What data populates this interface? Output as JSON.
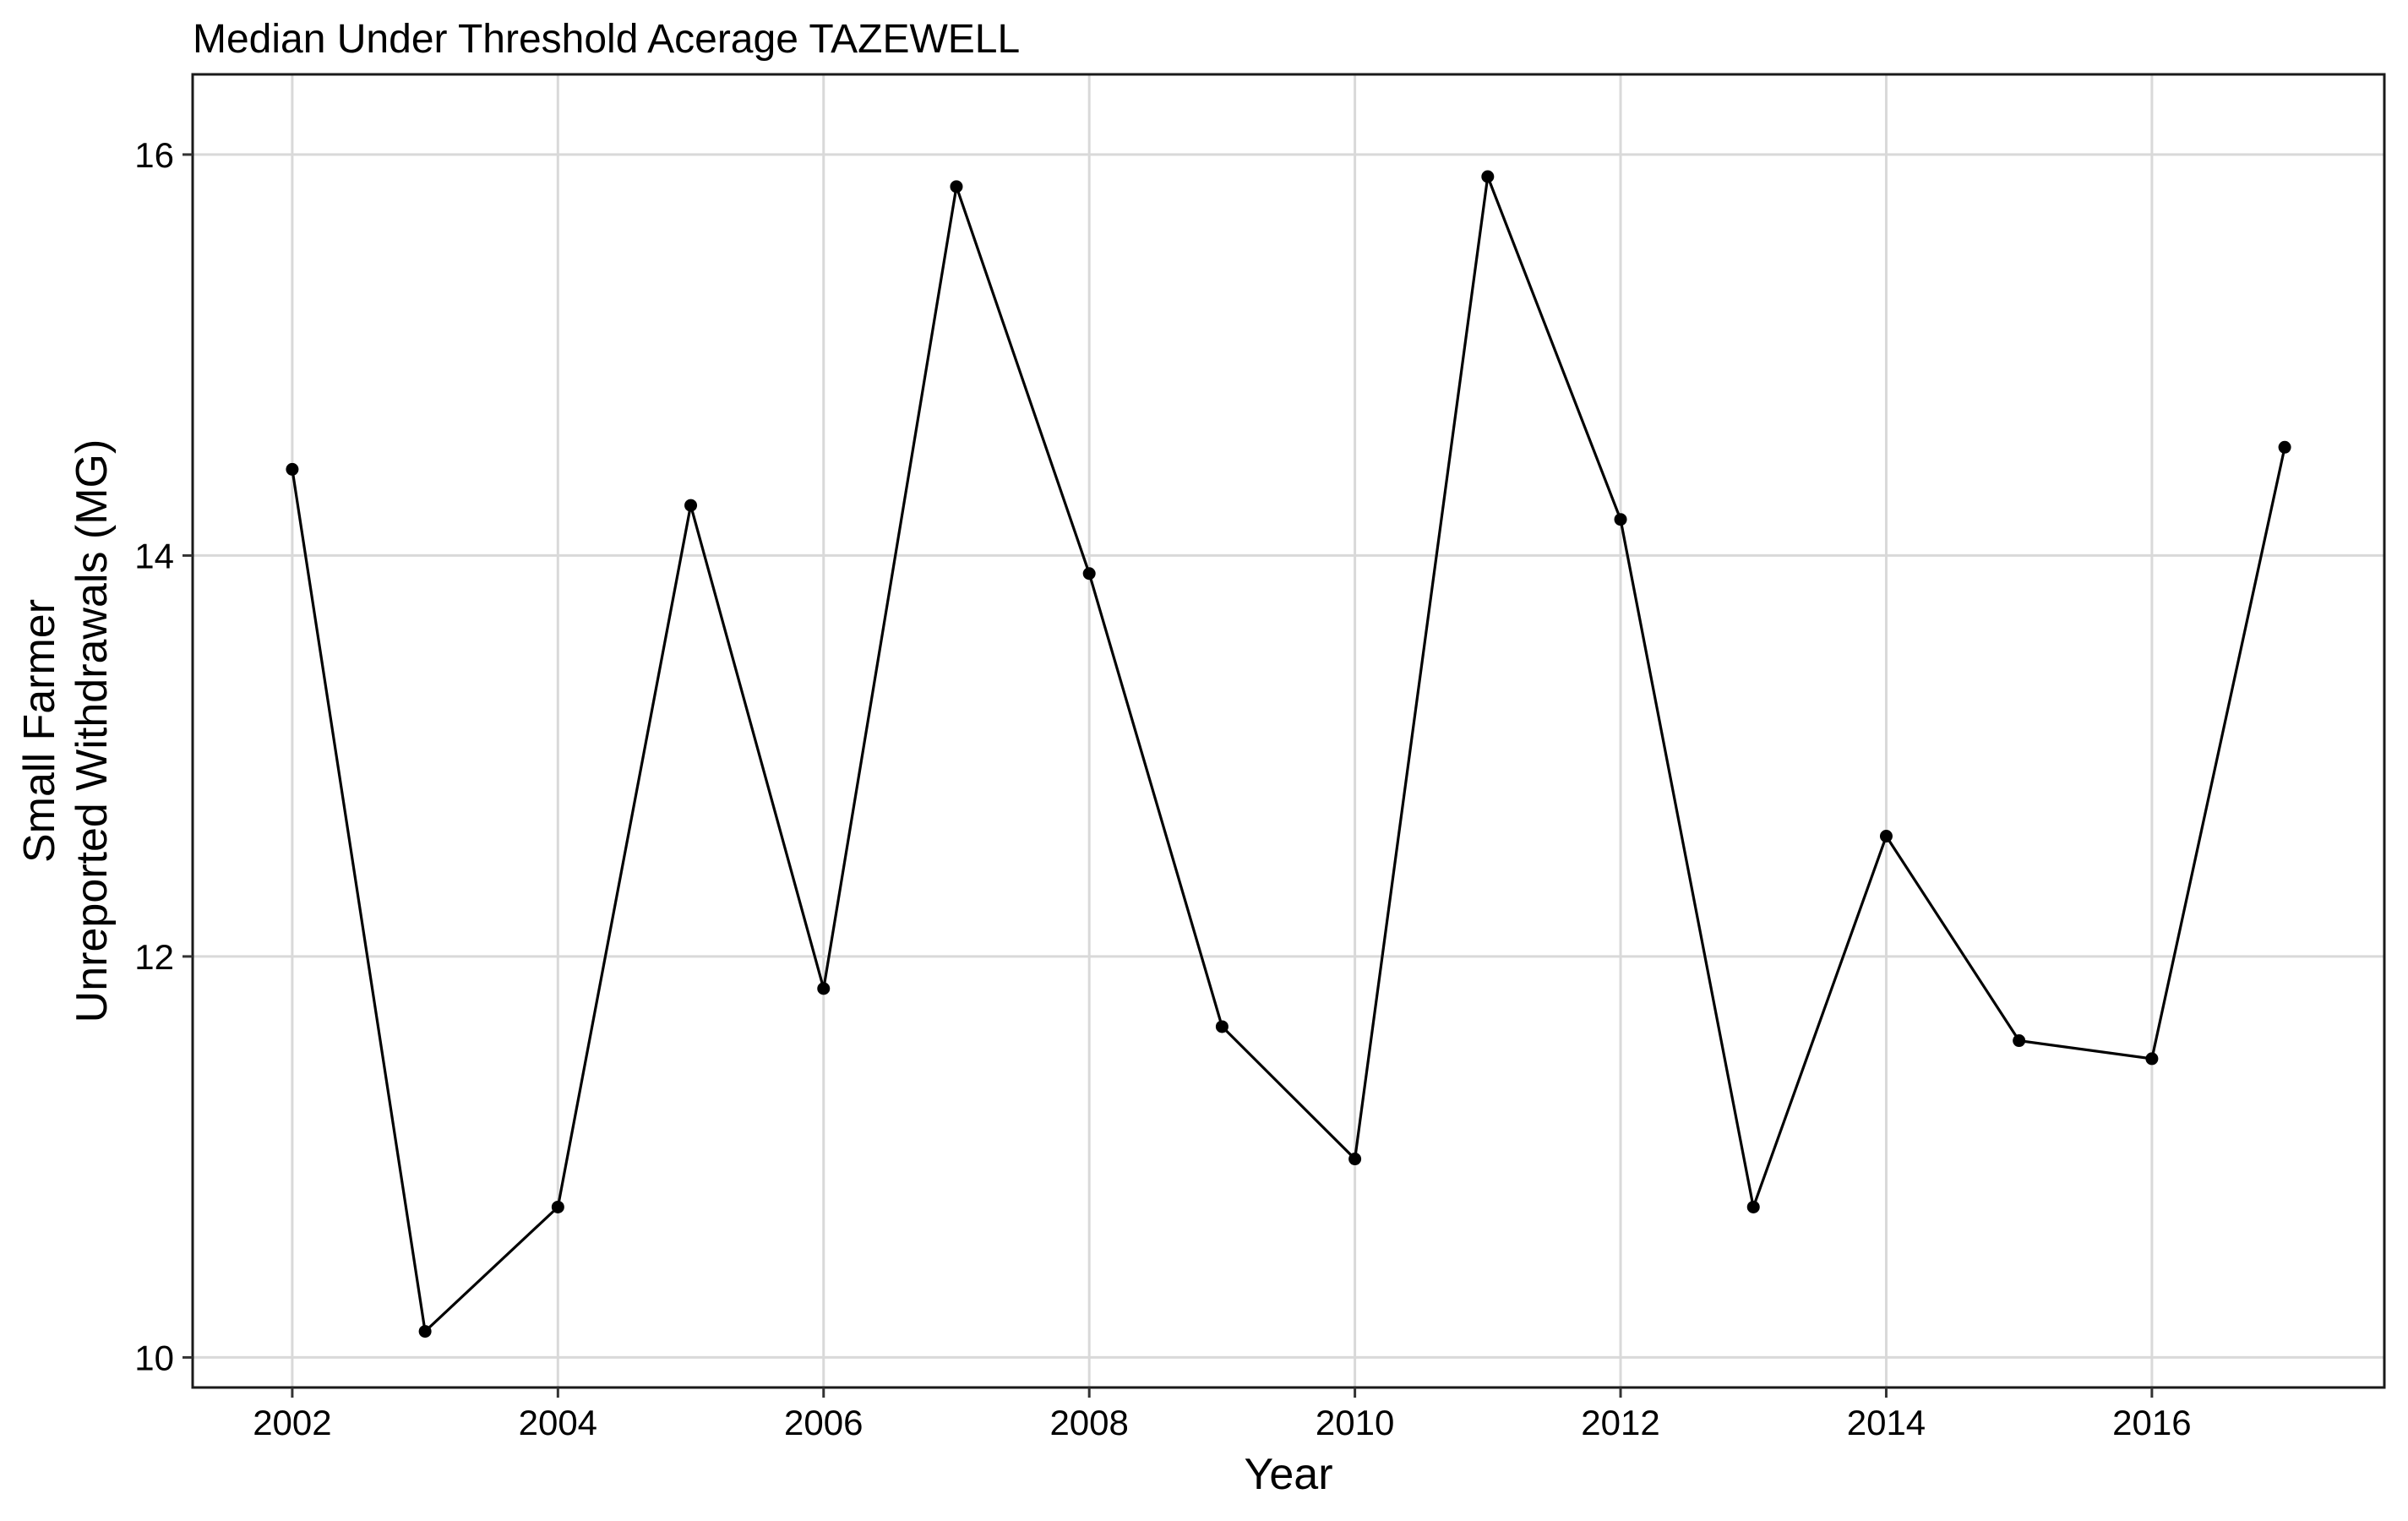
{
  "chart_data": {
    "type": "line",
    "title": "Median Under Threshold Acerage TAZEWELL",
    "xlabel": "Year",
    "ylabel_lines": [
      "Small Farmer",
      "Unreported Withdrawals (MG)"
    ],
    "x": [
      2002,
      2003,
      2004,
      2005,
      2006,
      2007,
      2008,
      2009,
      2010,
      2011,
      2012,
      2013,
      2014,
      2015,
      2016,
      2017
    ],
    "values": [
      14.43,
      10.13,
      10.75,
      14.25,
      11.84,
      15.84,
      13.91,
      11.65,
      10.99,
      15.89,
      14.18,
      10.75,
      12.6,
      11.58,
      11.49,
      14.54
    ],
    "xlim": [
      2001.25,
      2017.75
    ],
    "ylim": [
      9.85,
      16.4
    ],
    "x_ticks": [
      2002,
      2004,
      2006,
      2008,
      2010,
      2012,
      2014,
      2016
    ],
    "y_ticks": [
      10,
      12,
      14,
      16
    ],
    "x_tick_labels": [
      "2002",
      "2004",
      "2006",
      "2008",
      "2010",
      "2012",
      "2014",
      "2016"
    ],
    "y_tick_labels": [
      "10",
      "12",
      "14",
      "16"
    ],
    "grid": true,
    "line_color": "#000000",
    "grid_color": "#d9d9d9"
  }
}
